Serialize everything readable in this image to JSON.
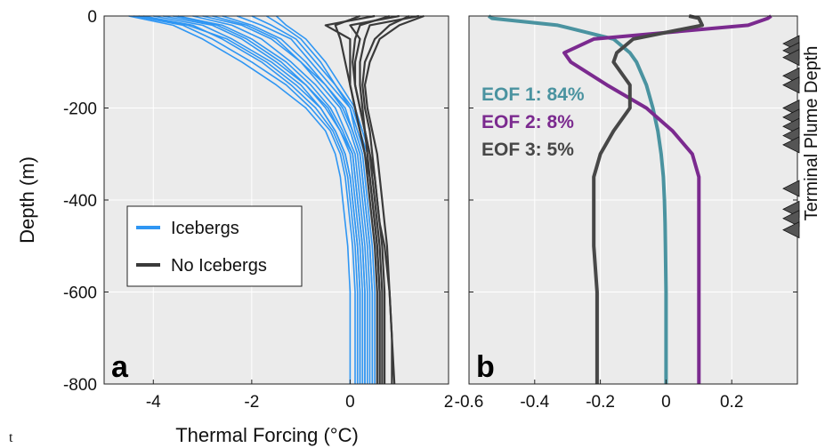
{
  "stray_text": "t",
  "side_label": "Terminal Plume Depth",
  "colors": {
    "icebergs": "#2f96f3",
    "no_icebergs": "#3a3a3a",
    "eof1": "#4a93a0",
    "eof2": "#7b2a8f",
    "eof3": "#474747",
    "panel_bg": "#ebebeb",
    "grid": "#ffffff",
    "marker": "#555555"
  },
  "chart_data": [
    {
      "type": "line",
      "panel_label": "a",
      "xlabel": "Thermal Forcing (°C)",
      "ylabel": "Depth (m)",
      "xlim": [
        -5,
        2
      ],
      "ylim": [
        -800,
        0
      ],
      "xticks": [
        "-4",
        "-2",
        "0",
        "2"
      ],
      "xtick_values": [
        -4,
        -2,
        0,
        2
      ],
      "yticks": [
        "0",
        "-200",
        "-400",
        "-600",
        "-800"
      ],
      "ytick_values": [
        0,
        -200,
        -400,
        -600,
        -800
      ],
      "grid": true,
      "legend_position": "center-left",
      "legend": [
        {
          "label": "Icebergs",
          "color_key": "icebergs"
        },
        {
          "label": "No Icebergs",
          "color_key": "no_icebergs"
        }
      ],
      "depth": [
        0,
        -20,
        -50,
        -100,
        -150,
        -200,
        -250,
        -300,
        -350,
        -400,
        -450,
        -500,
        -600,
        -700,
        -800
      ],
      "series_groups": [
        {
          "group": "Icebergs",
          "color_key": "icebergs",
          "series": [
            {
              "values": [
                -4.5,
                -3.6,
                -3.0,
                -2.2,
                -1.5,
                -0.9,
                -0.5,
                -0.3,
                -0.2,
                -0.15,
                -0.1,
                -0.05,
                0.0,
                0.0,
                0.0
              ]
            },
            {
              "values": [
                -4.4,
                -3.4,
                -2.8,
                -2.0,
                -1.3,
                -0.8,
                -0.4,
                -0.2,
                -0.1,
                -0.05,
                0.0,
                0.05,
                0.1,
                0.1,
                0.1
              ]
            },
            {
              "values": [
                -4.2,
                -3.2,
                -2.6,
                -1.8,
                -1.2,
                -0.7,
                -0.35,
                -0.15,
                -0.05,
                0.0,
                0.05,
                0.1,
                0.15,
                0.15,
                0.15
              ]
            },
            {
              "values": [
                -4.0,
                -3.0,
                -2.4,
                -1.6,
                -1.0,
                -0.6,
                -0.3,
                -0.1,
                0.0,
                0.05,
                0.1,
                0.15,
                0.2,
                0.2,
                0.2
              ]
            },
            {
              "values": [
                -3.8,
                -2.8,
                -2.2,
                -1.5,
                -0.9,
                -0.5,
                -0.2,
                0.0,
                0.05,
                0.1,
                0.15,
                0.2,
                0.25,
                0.25,
                0.25
              ]
            },
            {
              "values": [
                -3.5,
                -2.6,
                -2.0,
                -1.3,
                -0.8,
                -0.4,
                -0.15,
                0.05,
                0.1,
                0.15,
                0.2,
                0.25,
                0.3,
                0.3,
                0.3
              ]
            },
            {
              "values": [
                -3.2,
                -2.4,
                -1.8,
                -1.2,
                -0.7,
                -0.3,
                -0.1,
                0.1,
                0.15,
                0.2,
                0.25,
                0.3,
                0.35,
                0.35,
                0.35
              ]
            },
            {
              "values": [
                -3.0,
                -2.2,
                -1.6,
                -1.0,
                -0.6,
                -0.2,
                0.0,
                0.15,
                0.2,
                0.25,
                0.3,
                0.35,
                0.4,
                0.4,
                0.4
              ]
            },
            {
              "values": [
                -2.6,
                -2.0,
                -1.4,
                -0.9,
                -0.5,
                -0.1,
                0.05,
                0.2,
                0.25,
                0.3,
                0.35,
                0.4,
                0.45,
                0.45,
                0.45
              ]
            },
            {
              "values": [
                -2.3,
                -1.8,
                -1.2,
                -0.8,
                -0.4,
                0.0,
                0.1,
                0.25,
                0.3,
                0.35,
                0.4,
                0.45,
                0.5,
                0.5,
                0.5
              ]
            },
            {
              "values": [
                -2.0,
                -1.6,
                -1.1,
                -0.7,
                -0.3,
                0.0,
                0.15,
                0.3,
                0.35,
                0.4,
                0.45,
                0.5,
                0.55,
                0.55,
                0.55
              ]
            },
            {
              "values": [
                -1.7,
                -1.4,
                -1.0,
                -0.6,
                -0.3,
                0.05,
                0.2,
                0.35,
                0.4,
                0.45,
                0.5,
                0.55,
                0.6,
                0.6,
                0.6
              ]
            },
            {
              "values": [
                -1.5,
                -1.3,
                -0.9,
                -0.5,
                -0.2,
                0.1,
                0.25,
                0.4,
                0.45,
                0.5,
                0.55,
                0.6,
                0.65,
                0.65,
                0.65
              ]
            },
            {
              "values": [
                -4.3,
                -3.3,
                -2.5,
                -1.7,
                -1.1,
                -0.6,
                -0.3,
                -0.1,
                0.0,
                0.05,
                0.1,
                0.15,
                0.2,
                0.2,
                0.2
              ]
            },
            {
              "values": [
                -3.6,
                -2.7,
                -2.1,
                -1.4,
                -0.9,
                -0.45,
                -0.2,
                0.05,
                0.1,
                0.15,
                0.2,
                0.25,
                0.3,
                0.3,
                0.3
              ]
            },
            {
              "values": [
                -2.8,
                -2.1,
                -1.5,
                -1.0,
                -0.5,
                -0.15,
                0.05,
                0.2,
                0.25,
                0.3,
                0.35,
                0.4,
                0.45,
                0.45,
                0.45
              ]
            }
          ]
        },
        {
          "group": "No Icebergs",
          "color_key": "no_icebergs",
          "series": [
            {
              "values": [
                0.5,
                -0.5,
                0.0,
                0.0,
                0.0,
                0.1,
                0.2,
                0.3,
                0.4,
                0.45,
                0.5,
                0.55,
                0.6,
                0.6,
                0.6
              ]
            },
            {
              "values": [
                1.0,
                0.0,
                0.2,
                0.1,
                0.1,
                0.2,
                0.3,
                0.35,
                0.4,
                0.45,
                0.5,
                0.55,
                0.6,
                0.6,
                0.6
              ]
            },
            {
              "values": [
                1.4,
                0.4,
                0.3,
                0.2,
                0.2,
                0.25,
                0.3,
                0.4,
                0.45,
                0.5,
                0.55,
                0.6,
                0.65,
                0.65,
                0.65
              ]
            },
            {
              "values": [
                1.2,
                0.8,
                0.5,
                0.3,
                0.25,
                0.3,
                0.4,
                0.45,
                0.5,
                0.55,
                0.6,
                0.65,
                0.7,
                0.7,
                0.7
              ]
            },
            {
              "values": [
                0.8,
                0.2,
                0.1,
                0.05,
                0.1,
                0.2,
                0.3,
                0.4,
                0.5,
                0.55,
                0.6,
                0.7,
                0.8,
                0.85,
                0.9
              ]
            },
            {
              "values": [
                0.2,
                -0.3,
                -0.2,
                -0.1,
                0.0,
                0.1,
                0.2,
                0.3,
                0.35,
                0.4,
                0.45,
                0.5,
                0.55,
                0.55,
                0.55
              ]
            },
            {
              "values": [
                1.5,
                1.0,
                0.6,
                0.4,
                0.3,
                0.35,
                0.45,
                0.55,
                0.6,
                0.65,
                0.7,
                0.75,
                0.8,
                0.85,
                0.85
              ]
            }
          ]
        }
      ]
    },
    {
      "type": "line",
      "panel_label": "b",
      "xlabel": "",
      "ylabel": "",
      "xlim": [
        -0.6,
        0.4
      ],
      "ylim": [
        -800,
        0
      ],
      "xticks": [
        "-0.6",
        "-0.4",
        "-0.2",
        "0",
        "0.2"
      ],
      "xtick_values": [
        -0.6,
        -0.4,
        -0.2,
        0,
        0.2
      ],
      "grid": true,
      "depth": [
        0,
        -5,
        -20,
        -50,
        -80,
        -100,
        -150,
        -200,
        -250,
        -300,
        -350,
        -400,
        -450,
        -500,
        -600,
        -700,
        -800
      ],
      "series": [
        {
          "name": "EOF 1: 84%",
          "color_key": "eof1",
          "values": [
            -0.54,
            -0.53,
            -0.33,
            -0.16,
            -0.11,
            -0.09,
            -0.06,
            -0.04,
            -0.025,
            -0.015,
            -0.008,
            -0.005,
            -0.003,
            -0.002,
            0.0,
            0.0,
            0.0
          ]
        },
        {
          "name": "EOF 2: 8%",
          "color_key": "eof2",
          "values": [
            0.32,
            0.31,
            0.25,
            -0.22,
            -0.31,
            -0.29,
            -0.18,
            -0.06,
            0.02,
            0.08,
            0.1,
            0.1,
            0.1,
            0.1,
            0.1,
            0.1,
            0.1
          ]
        },
        {
          "name": "EOF 3: 5%",
          "color_key": "eof3",
          "values": [
            0.07,
            0.1,
            0.11,
            -0.1,
            -0.15,
            -0.16,
            -0.11,
            -0.11,
            -0.16,
            -0.2,
            -0.22,
            -0.22,
            -0.22,
            -0.22,
            -0.21,
            -0.21,
            -0.21
          ]
        }
      ],
      "markers": {
        "label": "Terminal Plume Depth",
        "depths": [
          -60,
          -75,
          -90,
          -130,
          -150,
          -200,
          -220,
          -240,
          -260,
          -280,
          -375,
          -420,
          -440,
          -465
        ]
      }
    }
  ]
}
